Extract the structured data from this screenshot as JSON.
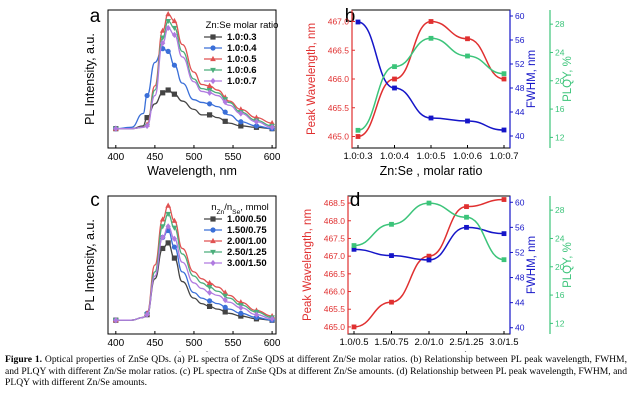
{
  "figure": {
    "caption_label": "Figure 1.",
    "caption_text": "Optical properties of ZnSe QDs. (a) PL spectra of ZnSe QDS at different Zn/Se molar ratios. (b) Relationship between PL peak wavelength, FWHM, and PLQY with different Zn/Se molar ratios. (c) PL spectra of ZnSe QDs at different Zn/Se amounts. (d) Relationship between PL peak wavelength, FWHM, and PLQY with different Zn/Se amounts."
  },
  "chart_data": [
    {
      "panel": "a",
      "type": "line",
      "xlabel": "Wavelength, nm",
      "ylabel": "PL Intensity, a.u.",
      "xlim": [
        390,
        605
      ],
      "xticks": [
        400,
        450,
        500,
        550,
        600
      ],
      "legend_title": "Zn:Se  molar ratio",
      "x": [
        400,
        420,
        435,
        440,
        450,
        460,
        467,
        475,
        485,
        500,
        510,
        520,
        530,
        545,
        560,
        580,
        600
      ],
      "series": [
        {
          "name": "1.0:0.3",
          "color": "#444444",
          "values": [
            0.14,
            0.14,
            0.16,
            0.22,
            0.32,
            0.4,
            0.42,
            0.39,
            0.34,
            0.28,
            0.24,
            0.24,
            0.22,
            0.18,
            0.16,
            0.15,
            0.14
          ]
        },
        {
          "name": "1.0:0.4",
          "color": "#3a6fd8",
          "values": [
            0.14,
            0.15,
            0.25,
            0.38,
            0.62,
            0.72,
            0.7,
            0.6,
            0.47,
            0.35,
            0.33,
            0.32,
            0.3,
            0.24,
            0.19,
            0.16,
            0.14
          ]
        },
        {
          "name": "1.0:0.5",
          "color": "#e05252",
          "values": [
            0.14,
            0.14,
            0.15,
            0.17,
            0.45,
            0.85,
            0.97,
            0.92,
            0.75,
            0.55,
            0.46,
            0.45,
            0.42,
            0.34,
            0.28,
            0.22,
            0.18
          ]
        },
        {
          "name": "1.0:0.6",
          "color": "#4cae7c",
          "values": [
            0.14,
            0.14,
            0.15,
            0.16,
            0.42,
            0.8,
            0.92,
            0.87,
            0.7,
            0.5,
            0.43,
            0.42,
            0.4,
            0.33,
            0.26,
            0.2,
            0.16
          ]
        },
        {
          "name": "1.0:0.7",
          "color": "#b07be0",
          "values": [
            0.14,
            0.14,
            0.15,
            0.16,
            0.38,
            0.76,
            0.87,
            0.82,
            0.66,
            0.48,
            0.41,
            0.4,
            0.38,
            0.31,
            0.25,
            0.19,
            0.15
          ]
        }
      ],
      "marker_x": [
        400,
        440,
        460,
        467,
        475,
        520,
        540,
        560,
        580,
        600
      ]
    },
    {
      "panel": "b",
      "type": "line",
      "xlabel": "Zn:Se , molar ratio",
      "categories": [
        "1.0:0.3",
        "1.0:0.4",
        "1.0:0.5",
        "1.0:0.6",
        "1.0:0.7"
      ],
      "axes": [
        {
          "label": "Peak Wavelength, nm",
          "color": "#e03030",
          "lim": [
            464.8,
            467.2
          ],
          "ticks": [
            465.0,
            465.5,
            466.0,
            466.5,
            467.0
          ],
          "fmt": 1
        },
        {
          "label": "FWHM, nm",
          "color": "#1515c8",
          "lim": [
            38,
            61
          ],
          "ticks": [
            40,
            44,
            48,
            52,
            56,
            60
          ],
          "fmt": 0
        },
        {
          "label": "PLQY, %",
          "color": "#3cc47a",
          "lim": [
            10.5,
            30
          ],
          "ticks": [
            12,
            16,
            20,
            24,
            28
          ],
          "fmt": 0
        }
      ],
      "series": [
        {
          "axis": 0,
          "color": "#e03030",
          "values": [
            465.0,
            466.0,
            467.0,
            466.7,
            466.0
          ]
        },
        {
          "axis": 1,
          "color": "#1515c8",
          "values": [
            59,
            48,
            43,
            42.5,
            41
          ]
        },
        {
          "axis": 2,
          "color": "#3cc47a",
          "values": [
            13,
            22,
            26,
            23.5,
            21
          ]
        }
      ]
    },
    {
      "panel": "c",
      "type": "line",
      "xlabel": "Wavelength, nm",
      "ylabel": "PL Intensity, a.u.",
      "xlim": [
        390,
        605
      ],
      "xticks": [
        400,
        450,
        500,
        550,
        600
      ],
      "legend_title": "n",
      "legend_title_sub1": "Zn",
      "legend_title_mid": "/n",
      "legend_title_sub2": "Se",
      "legend_title_tail": ", mmol",
      "x": [
        400,
        420,
        435,
        440,
        450,
        460,
        467,
        475,
        485,
        500,
        510,
        520,
        530,
        545,
        560,
        580,
        600
      ],
      "series": [
        {
          "name": "1.00/0.50",
          "color": "#444444",
          "values": [
            0.1,
            0.1,
            0.12,
            0.14,
            0.4,
            0.62,
            0.66,
            0.55,
            0.38,
            0.26,
            0.22,
            0.2,
            0.18,
            0.15,
            0.13,
            0.11,
            0.1
          ]
        },
        {
          "name": "1.50/0.75",
          "color": "#3a6fd8",
          "values": [
            0.1,
            0.1,
            0.12,
            0.15,
            0.45,
            0.7,
            0.75,
            0.63,
            0.45,
            0.3,
            0.26,
            0.24,
            0.22,
            0.18,
            0.15,
            0.12,
            0.1
          ]
        },
        {
          "name": "2.00/1.00",
          "color": "#e05252",
          "values": [
            0.1,
            0.1,
            0.12,
            0.15,
            0.5,
            0.83,
            0.93,
            0.82,
            0.62,
            0.45,
            0.4,
            0.37,
            0.34,
            0.28,
            0.23,
            0.17,
            0.13
          ]
        },
        {
          "name": "2.50/1.25",
          "color": "#4cae7c",
          "values": [
            0.1,
            0.1,
            0.12,
            0.14,
            0.45,
            0.78,
            0.87,
            0.77,
            0.58,
            0.42,
            0.37,
            0.34,
            0.31,
            0.26,
            0.21,
            0.16,
            0.12
          ]
        },
        {
          "name": "3.00/1.50",
          "color": "#b07be0",
          "values": [
            0.1,
            0.1,
            0.12,
            0.14,
            0.42,
            0.7,
            0.78,
            0.69,
            0.52,
            0.37,
            0.33,
            0.3,
            0.28,
            0.23,
            0.19,
            0.14,
            0.11
          ]
        }
      ],
      "marker_x": [
        400,
        440,
        460,
        467,
        475,
        520,
        540,
        560,
        580,
        600
      ]
    },
    {
      "panel": "d",
      "type": "line",
      "xlabel_pre": "n",
      "xlabel_sub1": "Zn",
      "xlabel_mid": ":n",
      "xlabel_sub2": "Se",
      "xlabel_tail": ", mmol",
      "categories": [
        "1.0/0.5",
        "1.5/0.75",
        "2.0/1.0",
        "2.5/1.25",
        "3.0/1.5"
      ],
      "axes": [
        {
          "label": "Peak Wavelength, nm",
          "color": "#e03030",
          "lim": [
            464.8,
            468.7
          ],
          "ticks": [
            465.0,
            465.5,
            466.0,
            466.5,
            467.0,
            467.5,
            468.0,
            468.5
          ],
          "fmt": 1
        },
        {
          "label": "FWHM, nm",
          "color": "#1515c8",
          "lim": [
            39,
            61
          ],
          "ticks": [
            40,
            44,
            48,
            52,
            56,
            60
          ],
          "fmt": 0
        },
        {
          "label": "PLQY, %",
          "color": "#3cc47a",
          "lim": [
            10.5,
            30
          ],
          "ticks": [
            12,
            16,
            20,
            24,
            28
          ],
          "fmt": 0
        }
      ],
      "series": [
        {
          "axis": 0,
          "color": "#e03030",
          "values": [
            465.0,
            465.7,
            467.0,
            468.4,
            468.6
          ]
        },
        {
          "axis": 1,
          "color": "#1515c8",
          "values": [
            52.5,
            51.5,
            50.8,
            56,
            55
          ]
        },
        {
          "axis": 2,
          "color": "#3cc47a",
          "values": [
            23,
            26,
            29,
            27,
            21
          ]
        }
      ]
    }
  ]
}
